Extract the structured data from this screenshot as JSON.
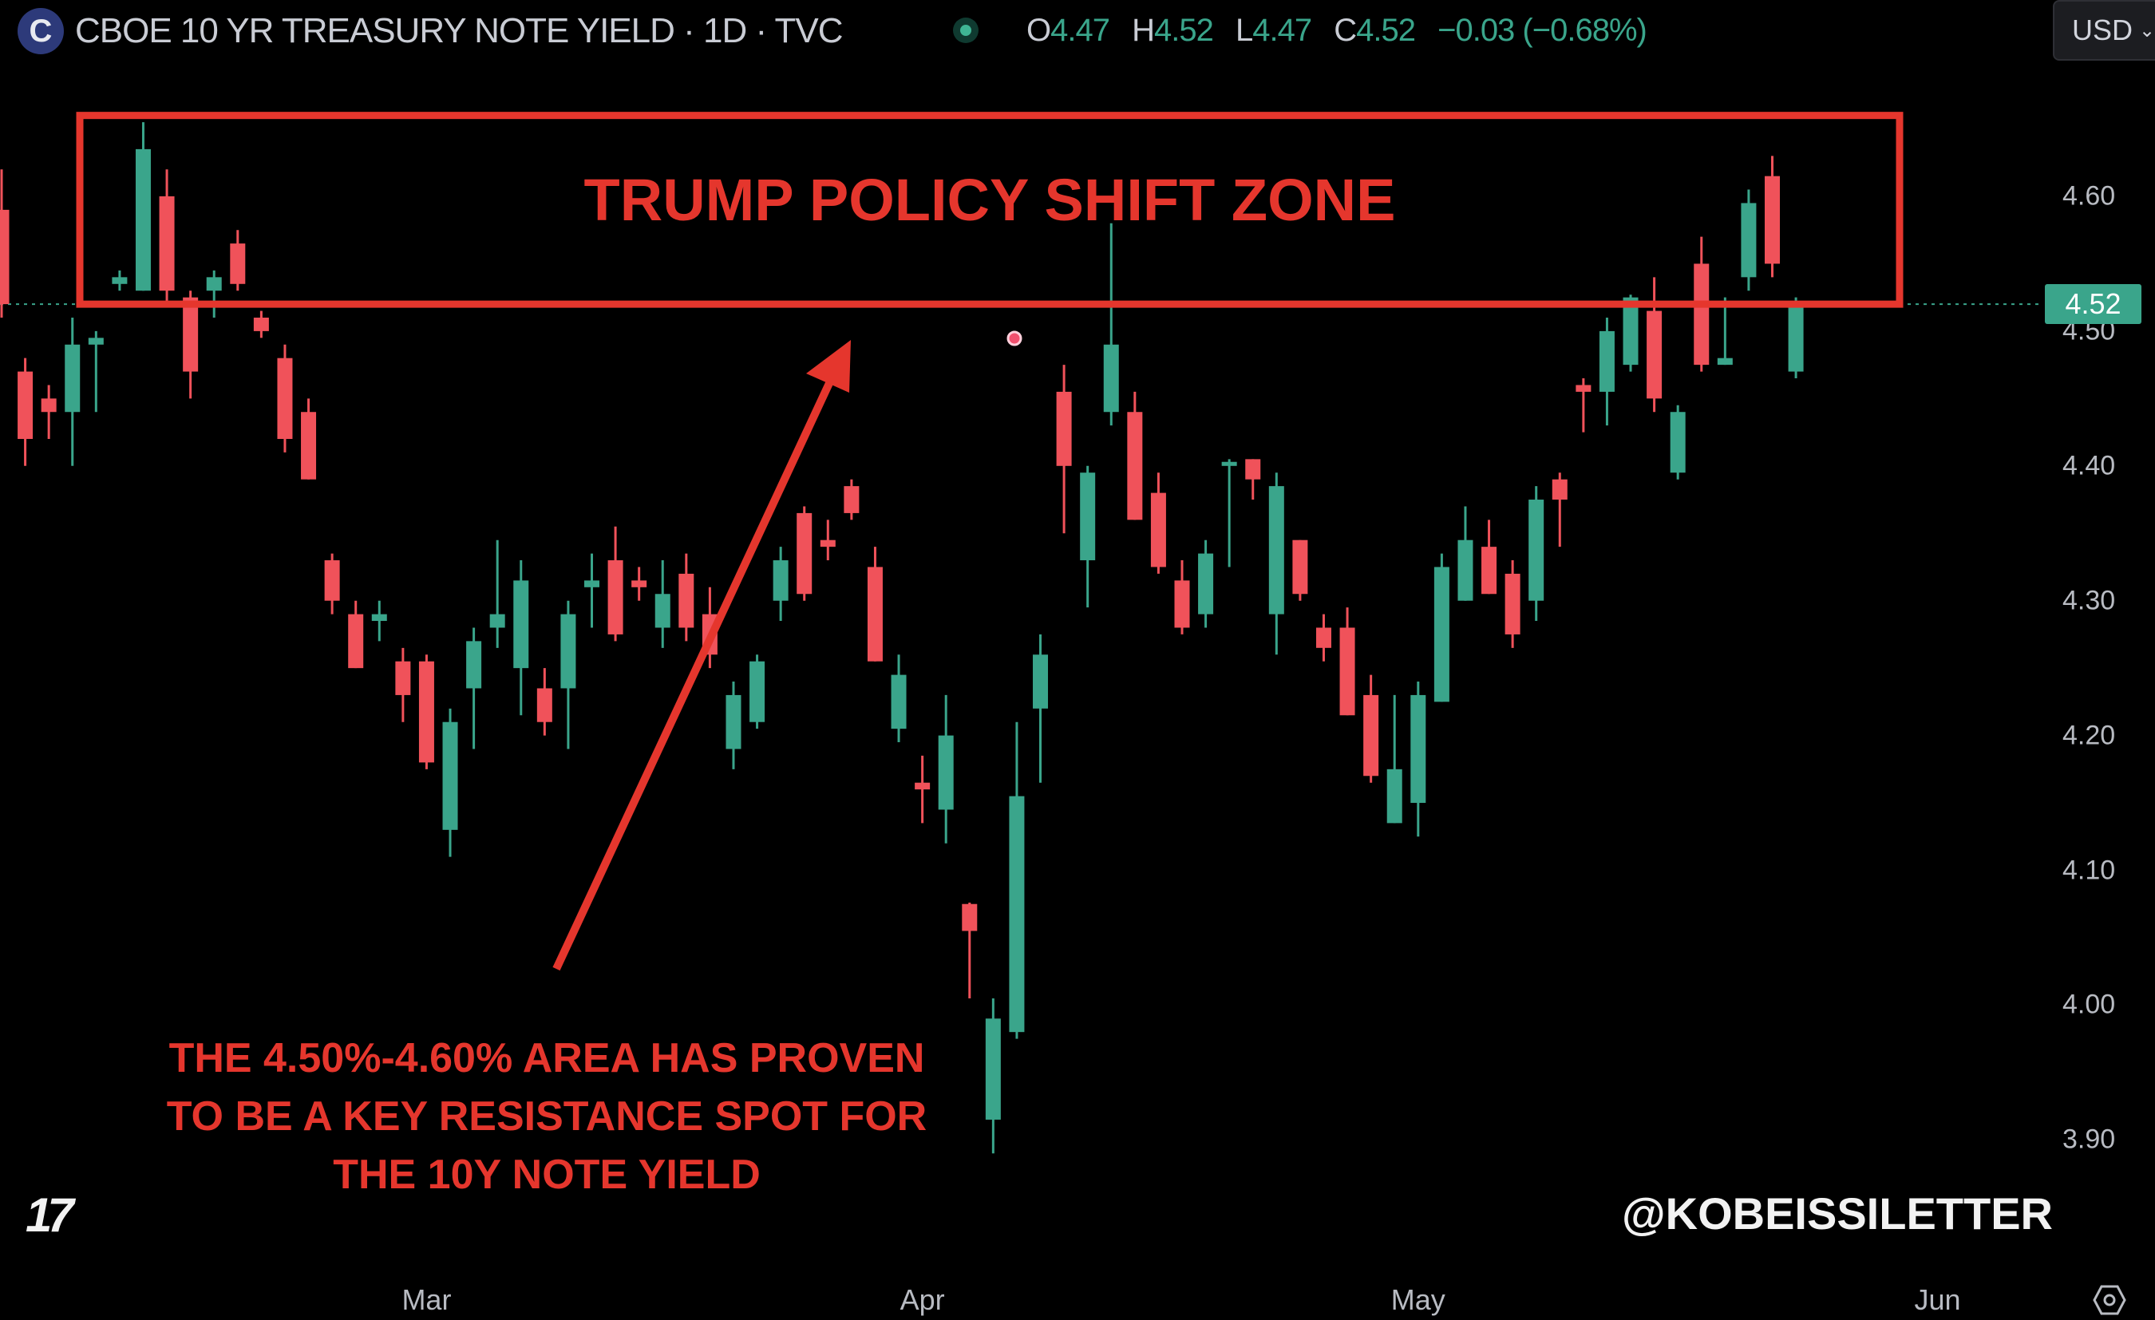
{
  "header": {
    "symbol_icon": "C",
    "title": "CBOE 10 YR TREASURY NOTE YIELD · 1D · TVC",
    "ohlc": {
      "o_label": "O",
      "o": "4.47",
      "h_label": "H",
      "h": "4.52",
      "l_label": "L",
      "l": "4.47",
      "c_label": "C",
      "c": "4.52",
      "change": "−0.03 (−0.68%)"
    },
    "currency": "USD",
    "currency_icon": "chevron-down-icon"
  },
  "annotations": {
    "zone_title": "TRUMP POLICY SHIFT ZONE",
    "zone_range": [
      4.52,
      4.66
    ],
    "note_lines": [
      "THE 4.50%-4.60% AREA HAS PROVEN",
      "TO BE A KEY RESISTANCE SPOT FOR",
      "THE 10Y NOTE YIELD"
    ],
    "watermark": "@KOBEISSILETTER",
    "logo": "TV",
    "color": "#e5362d"
  },
  "colors": {
    "up": "#3aa58b",
    "down": "#f0525a",
    "background": "#000000"
  },
  "chart_data": {
    "type": "candlestick",
    "title": "",
    "last_price": "4.52",
    "y_ticks": [
      "4.60",
      "4.50",
      "4.40",
      "4.30",
      "4.20",
      "4.10",
      "4.00",
      "3.90"
    ],
    "ylim": [
      3.85,
      4.68
    ],
    "x_ticks": [
      {
        "label": "Mar",
        "date": "2025-03-03"
      },
      {
        "label": "Apr",
        "date": "2025-04-01"
      },
      {
        "label": "May",
        "date": "2025-05-01"
      },
      {
        "label": "Jun",
        "date": "2025-06-02"
      }
    ],
    "grid": false,
    "columns": [
      "date",
      "open",
      "high",
      "low",
      "close"
    ],
    "candles": [
      [
        "2025-02-04",
        4.59,
        4.62,
        4.51,
        4.52
      ],
      [
        "2025-02-05",
        4.47,
        4.48,
        4.4,
        4.42
      ],
      [
        "2025-02-06",
        4.45,
        4.46,
        4.42,
        4.44
      ],
      [
        "2025-02-07",
        4.44,
        4.51,
        4.4,
        4.49
      ],
      [
        "2025-02-10",
        4.49,
        4.5,
        4.44,
        4.495
      ],
      [
        "2025-02-11",
        4.535,
        4.545,
        4.53,
        4.54
      ],
      [
        "2025-02-12",
        4.53,
        4.655,
        4.53,
        4.635
      ],
      [
        "2025-02-13",
        4.6,
        4.62,
        4.52,
        4.53
      ],
      [
        "2025-02-14",
        4.525,
        4.53,
        4.45,
        4.47
      ],
      [
        "2025-02-18",
        4.53,
        4.545,
        4.51,
        4.54
      ],
      [
        "2025-02-19",
        4.565,
        4.575,
        4.53,
        4.535
      ],
      [
        "2025-02-20",
        4.51,
        4.515,
        4.495,
        4.5
      ],
      [
        "2025-02-21",
        4.48,
        4.49,
        4.41,
        4.42
      ],
      [
        "2025-02-24",
        4.44,
        4.45,
        4.39,
        4.39
      ],
      [
        "2025-02-25",
        4.33,
        4.335,
        4.29,
        4.3
      ],
      [
        "2025-02-26",
        4.29,
        4.3,
        4.25,
        4.25
      ],
      [
        "2025-02-27",
        4.285,
        4.3,
        4.27,
        4.29
      ],
      [
        "2025-02-28",
        4.255,
        4.265,
        4.21,
        4.23
      ],
      [
        "2025-03-03",
        4.255,
        4.26,
        4.175,
        4.18
      ],
      [
        "2025-03-04",
        4.13,
        4.22,
        4.11,
        4.21
      ],
      [
        "2025-03-05",
        4.235,
        4.28,
        4.19,
        4.27
      ],
      [
        "2025-03-06",
        4.28,
        4.345,
        4.265,
        4.29
      ],
      [
        "2025-03-07",
        4.25,
        4.33,
        4.215,
        4.315
      ],
      [
        "2025-03-10",
        4.235,
        4.25,
        4.2,
        4.21
      ],
      [
        "2025-03-11",
        4.235,
        4.3,
        4.19,
        4.29
      ],
      [
        "2025-03-12",
        4.31,
        4.335,
        4.28,
        4.315
      ],
      [
        "2025-03-13",
        4.33,
        4.355,
        4.27,
        4.275
      ],
      [
        "2025-03-14",
        4.315,
        4.325,
        4.3,
        4.31
      ],
      [
        "2025-03-17",
        4.28,
        4.33,
        4.265,
        4.305
      ],
      [
        "2025-03-18",
        4.32,
        4.335,
        4.27,
        4.28
      ],
      [
        "2025-03-19",
        4.29,
        4.31,
        4.25,
        4.26
      ],
      [
        "2025-03-20",
        4.19,
        4.24,
        4.175,
        4.23
      ],
      [
        "2025-03-21",
        4.21,
        4.26,
        4.205,
        4.255
      ],
      [
        "2025-03-24",
        4.3,
        4.34,
        4.285,
        4.33
      ],
      [
        "2025-03-25",
        4.365,
        4.37,
        4.3,
        4.305
      ],
      [
        "2025-03-26",
        4.345,
        4.36,
        4.33,
        4.34
      ],
      [
        "2025-03-27",
        4.385,
        4.39,
        4.36,
        4.365
      ],
      [
        "2025-03-28",
        4.325,
        4.34,
        4.255,
        4.255
      ],
      [
        "2025-03-31",
        4.205,
        4.26,
        4.195,
        4.245
      ],
      [
        "2025-04-01",
        4.165,
        4.185,
        4.135,
        4.16
      ],
      [
        "2025-04-02",
        4.145,
        4.23,
        4.12,
        4.2
      ],
      [
        "2025-04-03",
        4.075,
        4.076,
        4.005,
        4.055
      ],
      [
        "2025-04-04",
        3.915,
        4.005,
        3.89,
        3.99
      ],
      [
        "2025-04-07",
        3.98,
        4.21,
        3.975,
        4.155
      ],
      [
        "2025-04-08",
        4.22,
        4.275,
        4.165,
        4.26
      ],
      [
        "2025-04-09",
        4.455,
        4.475,
        4.35,
        4.4
      ],
      [
        "2025-04-10",
        4.33,
        4.4,
        4.295,
        4.395
      ],
      [
        "2025-04-11",
        4.44,
        4.58,
        4.43,
        4.49
      ],
      [
        "2025-04-14",
        4.44,
        4.455,
        4.36,
        4.36
      ],
      [
        "2025-04-15",
        4.38,
        4.395,
        4.32,
        4.325
      ],
      [
        "2025-04-16",
        4.315,
        4.33,
        4.275,
        4.28
      ],
      [
        "2025-04-17",
        4.29,
        4.345,
        4.28,
        4.335
      ],
      [
        "2025-04-21",
        4.4,
        4.405,
        4.325,
        4.403
      ],
      [
        "2025-04-22",
        4.405,
        4.405,
        4.375,
        4.39
      ],
      [
        "2025-04-23",
        4.29,
        4.395,
        4.26,
        4.385
      ],
      [
        "2025-04-24",
        4.345,
        4.345,
        4.3,
        4.305
      ],
      [
        "2025-04-25",
        4.28,
        4.29,
        4.255,
        4.265
      ],
      [
        "2025-04-28",
        4.28,
        4.295,
        4.215,
        4.215
      ],
      [
        "2025-04-29",
        4.23,
        4.245,
        4.165,
        4.17
      ],
      [
        "2025-04-30",
        4.135,
        4.23,
        4.135,
        4.175
      ],
      [
        "2025-05-01",
        4.15,
        4.24,
        4.125,
        4.23
      ],
      [
        "2025-05-02",
        4.225,
        4.335,
        4.225,
        4.325
      ],
      [
        "2025-05-05",
        4.3,
        4.37,
        4.3,
        4.345
      ],
      [
        "2025-05-06",
        4.34,
        4.36,
        4.305,
        4.305
      ],
      [
        "2025-05-07",
        4.32,
        4.33,
        4.265,
        4.275
      ],
      [
        "2025-05-08",
        4.3,
        4.385,
        4.285,
        4.375
      ],
      [
        "2025-05-09",
        4.39,
        4.395,
        4.34,
        4.375
      ],
      [
        "2025-05-12",
        4.46,
        4.465,
        4.425,
        4.455
      ],
      [
        "2025-05-13",
        4.455,
        4.51,
        4.43,
        4.5
      ],
      [
        "2025-05-14",
        4.475,
        4.527,
        4.47,
        4.525
      ],
      [
        "2025-05-15",
        4.515,
        4.54,
        4.44,
        4.45
      ],
      [
        "2025-05-16",
        4.395,
        4.445,
        4.39,
        4.44
      ],
      [
        "2025-05-19",
        4.55,
        4.57,
        4.47,
        4.475
      ],
      [
        "2025-05-20",
        4.475,
        4.525,
        4.475,
        4.48
      ],
      [
        "2025-05-21",
        4.54,
        4.605,
        4.53,
        4.595
      ],
      [
        "2025-05-22",
        4.615,
        4.63,
        4.54,
        4.55
      ],
      [
        "2025-05-23",
        4.47,
        4.525,
        4.465,
        4.52
      ]
    ]
  }
}
